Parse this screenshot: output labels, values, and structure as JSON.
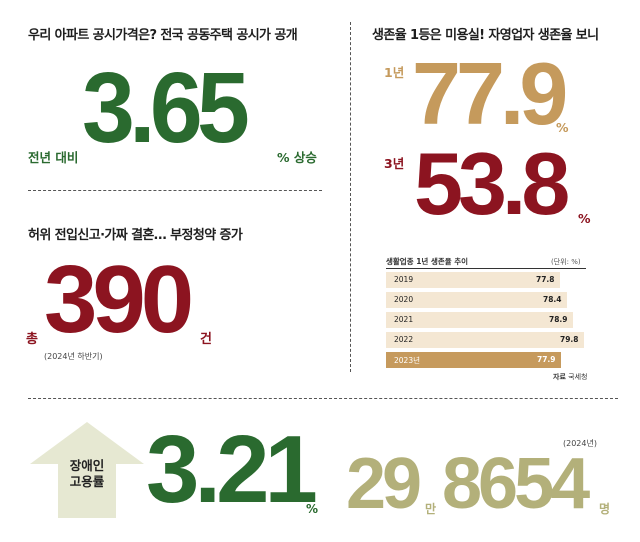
{
  "section1": {
    "headline": "우리 아파트 공시가격은? 전국 공동주택 공시가 공개",
    "prefix": "전년 대비",
    "number": "3.65",
    "suffix": "% 상승"
  },
  "section2": {
    "headline": "허위 전입신고·가짜 결혼… 부정청약 증가",
    "prefix": "총",
    "number": "390",
    "suffix": "건",
    "note": "(2024년 하반기)"
  },
  "section3": {
    "headline": "생존율 1등은 미용실! 자영업자 생존율 보니",
    "year1_label": "1년",
    "year1_value": "77.9",
    "year1_unit": "%",
    "year3_label": "3년",
    "year3_value": "53.8",
    "year3_unit": "%"
  },
  "table": {
    "title": "생활업종 1년 생존율 추이",
    "unit": "(단위: %)",
    "source_label": "자료",
    "source": "국세청"
  },
  "chart_data": {
    "type": "bar",
    "title": "생활업종 1년 생존율 추이",
    "categories": [
      "2019",
      "2020",
      "2021",
      "2022",
      "2023년"
    ],
    "values": [
      77.8,
      78.4,
      78.9,
      79.8,
      77.9
    ],
    "ylabel": "(단위: %)",
    "ylim": [
      77,
      80
    ]
  },
  "section4": {
    "arrow_label_line1": "장애인",
    "arrow_label_line2": "고용률",
    "rate": "3.21",
    "rate_unit": "%",
    "year_note": "(2024년)",
    "count_part1": "29",
    "count_part1_unit": "만",
    "count_part2": "8654",
    "count_part2_unit": "명"
  },
  "colors": {
    "green": "#2a6a2f",
    "red": "#8c1420",
    "tan": "#c59a5c",
    "olive": "#b3b07a",
    "bar_light": "#f4e7d3",
    "bar_dark": "#c69a5d",
    "arrow": "#e6e8d2"
  }
}
